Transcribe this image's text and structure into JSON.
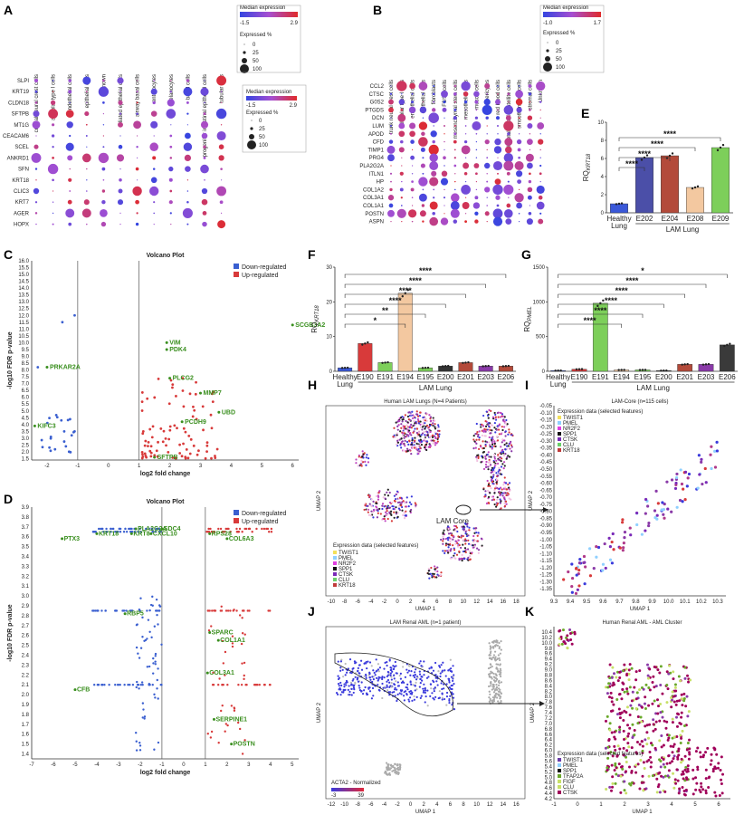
{
  "chart_data": [
    {
      "panel": "A",
      "type": "dotplot",
      "columns": [
        "cranial neural crest cells",
        "alveolar type I cells",
        "endothelial cells",
        "epithelial cells",
        "Unknown",
        "ciliated epithelial cells",
        "airway basal cells",
        "enterocytes",
        "melanocytes",
        "basal cells",
        "progenitor intestinal epithelial cells",
        "tubular cells"
      ],
      "rows": [
        "SLPI",
        "KRT19",
        "CLDN18",
        "SFTPB",
        "MT1G",
        "CEACAM6",
        "SCEL",
        "ANKRD1",
        "SFN",
        "KRT18",
        "CLIC3",
        "KRT7",
        "AGER",
        "HOPX"
      ],
      "legend_title": "Median expression",
      "legend_min": "-1.5",
      "legend_max": "2.9",
      "size_title": "Expressed %",
      "size_ticks": [
        "0",
        "25",
        "50",
        "100"
      ]
    },
    {
      "panel": "B",
      "type": "dotplot",
      "columns": [
        "trunk neural crest cells",
        "alveolar type I cells",
        "endothelial cells",
        "epithelial cells",
        "fibroblasts",
        "F0/Sn cells",
        "mesenchymal stem cells",
        "mesothelial cells",
        "muscle cells",
        "pericytes",
        "red blood cells",
        "skeletal muscle satellite cells",
        "smooth muscle cells",
        "stromal cells",
        "Unknown"
      ],
      "rows": [
        "CCL2",
        "CTSC",
        "G0S2",
        "PTGDS",
        "DCN",
        "LUM",
        "APOD",
        "CFD",
        "TIMP1",
        "PRG4",
        "PLA2G2A",
        "ITLN1",
        "HP",
        "COL1A2",
        "COL3A1",
        "COL1A1",
        "POSTN",
        "ASPN"
      ],
      "legend_title": "Median expression",
      "legend_min": "-1.0",
      "legend_max": "1.7",
      "size_title": "Expressed %",
      "size_ticks": [
        "0",
        "25",
        "50",
        "100"
      ]
    },
    {
      "panel": "C",
      "type": "scatter",
      "title": "Volcano Plot",
      "xlabel": "log2 fold change",
      "ylabel": "-log10 FDR p-value",
      "xlim": [
        -2.5,
        6.2
      ],
      "ylim": [
        1.4,
        16.0
      ],
      "legend": [
        "Down-regulated",
        "Up-regulated"
      ],
      "labels": [
        {
          "text": "SCGB3A2",
          "x": 6.0,
          "y": 11.3
        },
        {
          "text": "VIM",
          "x": 1.9,
          "y": 10.0
        },
        {
          "text": "PDK4",
          "x": 1.9,
          "y": 9.5
        },
        {
          "text": "PLCG2",
          "x": 2.0,
          "y": 7.4
        },
        {
          "text": "MMP7",
          "x": 3.0,
          "y": 6.3
        },
        {
          "text": "UBD",
          "x": 3.6,
          "y": 4.9
        },
        {
          "text": "PCDH9",
          "x": 2.4,
          "y": 4.2
        },
        {
          "text": "SFTPB",
          "x": 1.5,
          "y": 1.6
        },
        {
          "text": "PRKAR2A",
          "x": -2.0,
          "y": 8.2
        },
        {
          "text": "KIFC3",
          "x": -2.4,
          "y": 3.9
        }
      ]
    },
    {
      "panel": "D",
      "type": "scatter",
      "title": "Volcano Plot",
      "xlabel": "log2 fold change",
      "ylabel": "-log10 FDR p-value",
      "xlim": [
        -7,
        5.3
      ],
      "ylim": [
        1.35,
        3.9
      ],
      "legend": [
        "Down-regulated",
        "Up-regulated"
      ],
      "labels": [
        {
          "text": "PLA2G2A",
          "x": -2.2,
          "y": 3.68
        },
        {
          "text": "SDC4",
          "x": -1.0,
          "y": 3.68
        },
        {
          "text": "KRT18",
          "x": -4.0,
          "y": 3.63
        },
        {
          "text": "KRT8",
          "x": -2.4,
          "y": 3.63
        },
        {
          "text": "CXCL10",
          "x": -1.5,
          "y": 3.63
        },
        {
          "text": "PTX3",
          "x": -5.6,
          "y": 3.58
        },
        {
          "text": "RPS28",
          "x": 1.2,
          "y": 3.63
        },
        {
          "text": "COL6A3",
          "x": 2.0,
          "y": 3.58
        },
        {
          "text": "RBP5",
          "x": -2.7,
          "y": 2.82
        },
        {
          "text": "SPARC",
          "x": 1.2,
          "y": 2.63
        },
        {
          "text": "COL1A1",
          "x": 1.6,
          "y": 2.55
        },
        {
          "text": "COL3A1",
          "x": 1.1,
          "y": 2.22
        },
        {
          "text": "CFB",
          "x": -5.0,
          "y": 2.05
        },
        {
          "text": "SERPINE1",
          "x": 1.4,
          "y": 1.75
        },
        {
          "text": "POSTN",
          "x": 2.2,
          "y": 1.5
        }
      ]
    },
    {
      "panel": "E",
      "type": "bar",
      "ylabel": "RQ KRT18",
      "ylim": [
        0,
        10
      ],
      "categories": [
        "Healthy Lung",
        "E202",
        "E204",
        "E208",
        "E209"
      ],
      "values": [
        1.0,
        6.1,
        6.3,
        2.8,
        7.2
      ],
      "colors": [
        "#3a58d8",
        "#4b4fa8",
        "#b34a3a",
        "#f3c8a0",
        "#7dcf5a"
      ],
      "group_label": "LAM Lung",
      "significance": [
        "****",
        "****",
        "****",
        "****"
      ]
    },
    {
      "panel": "F",
      "type": "bar",
      "ylabel": "RQ KRT18",
      "ylim": [
        0,
        30
      ],
      "categories": [
        "Healthy Lung",
        "E190",
        "E191",
        "E194",
        "E195",
        "E200",
        "E201",
        "E203",
        "E206"
      ],
      "values": [
        1.0,
        8.0,
        2.5,
        22.5,
        1.0,
        1.5,
        2.5,
        1.5,
        1.5
      ],
      "colors": [
        "#3a58d8",
        "#d83a3a",
        "#7dcf5a",
        "#f3c8a0",
        "#7dcf5a",
        "#333333",
        "#b34a3a",
        "#8a3aa8",
        "#b34a3a"
      ],
      "group_label": "LAM Lung",
      "significance": [
        "****",
        "****",
        "****",
        "****",
        "**",
        "*"
      ]
    },
    {
      "panel": "G",
      "type": "bar",
      "ylabel": "RQ PMEL",
      "ylim": [
        0,
        1500
      ],
      "categories": [
        "Healthy Lung",
        "E190",
        "E191",
        "E194",
        "E195",
        "E200",
        "E201",
        "E203",
        "E206"
      ],
      "values": [
        10,
        30,
        980,
        20,
        20,
        10,
        100,
        100,
        380
      ],
      "colors": [
        "#3a58d8",
        "#d83a3a",
        "#7dcf5a",
        "#f3c8a0",
        "#7dcf5a",
        "#333333",
        "#b34a3a",
        "#8a3aa8",
        "#3a3a3a"
      ],
      "group_label": "LAM Lung",
      "significance": [
        "*",
        "****",
        "****",
        "****",
        "****",
        "****"
      ]
    },
    {
      "panel": "H",
      "type": "scatter",
      "title": "Human LAM Lungs (N=4 Patients)",
      "xlabel": "UMAP 1",
      "ylabel": "UMAP 2",
      "annotation": "LAM Core",
      "legend_title": "Expression data (selected features)",
      "legend": [
        "TWIST1",
        "PMEL",
        "NR2F2",
        "SPP1",
        "CTSK",
        "CLU",
        "KRT18"
      ]
    },
    {
      "panel": "I",
      "type": "scatter",
      "title": "LAM-Core (n=115 cells)",
      "xlabel": "UMAP 1",
      "ylabel": "UMAP 2",
      "xlim": [
        9.3,
        10.35
      ],
      "ylim": [
        -1.4,
        -0.05
      ],
      "legend_title": "Expression data (selected features)",
      "legend": [
        "TWIST1",
        "PMEL",
        "NR2F2",
        "SPP1",
        "CTSK",
        "CLU",
        "KRT18"
      ]
    },
    {
      "panel": "J",
      "type": "scatter",
      "title": "LAM Renal AML (n=1 patient)",
      "xlabel": "UMAP 1",
      "ylabel": "UMAP 2",
      "color_label": "ACTA2 - Normalized",
      "color_min": "-3",
      "color_max": "39"
    },
    {
      "panel": "K",
      "type": "scatter",
      "title": "Human Renal AML - AML Cluster",
      "xlabel": "UMAP 1",
      "ylabel": "UMAP 2",
      "xlim": [
        -1,
        6.5
      ],
      "ylim": [
        4.2,
        10.6
      ],
      "legend_title": "Expression data (selected features)",
      "legend": [
        "TWIST1",
        "PMEL",
        "SPP1",
        "TFAP2A",
        "FIGF",
        "CLU",
        "CTSK"
      ]
    }
  ]
}
